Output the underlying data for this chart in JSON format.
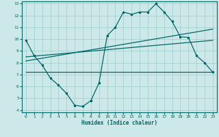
{
  "xlabel": "Humidex (Indice chaleur)",
  "background_color": "#cce8e8",
  "grid_color": "#99cccc",
  "line_color": "#006666",
  "xlim": [
    -0.5,
    23.5
  ],
  "ylim": [
    3.8,
    13.2
  ],
  "x_ticks": [
    0,
    1,
    2,
    3,
    4,
    5,
    6,
    7,
    8,
    9,
    10,
    11,
    12,
    13,
    14,
    15,
    16,
    17,
    18,
    19,
    20,
    21,
    22,
    23
  ],
  "y_ticks": [
    4,
    5,
    6,
    7,
    8,
    9,
    10,
    11,
    12,
    13
  ],
  "series1_x": [
    0,
    1,
    2,
    3,
    4,
    5,
    6,
    7,
    8,
    9,
    10,
    11,
    12,
    13,
    14,
    15,
    16,
    17,
    18,
    19,
    20,
    21,
    22,
    23
  ],
  "series1_y": [
    9.9,
    8.6,
    7.8,
    6.7,
    6.1,
    5.4,
    4.4,
    4.3,
    4.8,
    6.3,
    10.3,
    11.0,
    12.3,
    12.1,
    12.3,
    12.3,
    13.0,
    12.3,
    11.5,
    10.2,
    10.15,
    8.6,
    8.0,
    7.2
  ],
  "series2_x": [
    0,
    23
  ],
  "series2_y": [
    8.5,
    9.9
  ],
  "series3_x": [
    0,
    23
  ],
  "series3_y": [
    8.15,
    10.85
  ],
  "series4_x": [
    0,
    23
  ],
  "series4_y": [
    7.2,
    7.2
  ]
}
